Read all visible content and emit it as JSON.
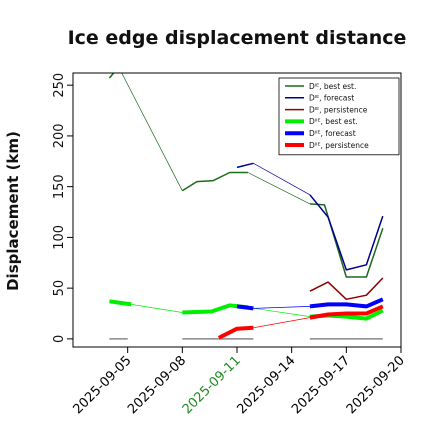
{
  "chart_data": {
    "type": "line",
    "title": "Ice edge displacement distance",
    "xlabel": "",
    "ylabel": "Displacement (km)",
    "ylim": [
      -8,
      262
    ],
    "yticks": [
      0,
      50,
      100,
      150,
      200,
      250
    ],
    "xlim": [
      "2025-09-02",
      "2025-09-20"
    ],
    "xticks": [
      {
        "label": "2025-09-05",
        "date": "2025-09-05",
        "color": "#000000"
      },
      {
        "label": "2025-09-08",
        "date": "2025-09-08",
        "color": "#000000"
      },
      {
        "label": "2025-09-11",
        "date": "2025-09-11",
        "color": "#1f8a1f"
      },
      {
        "label": "2025-09-14",
        "date": "2025-09-14",
        "color": "#000000"
      },
      {
        "label": "2025-09-17",
        "date": "2025-09-17",
        "color": "#000000"
      },
      {
        "label": "2025-09-20",
        "date": "2025-09-20",
        "color": "#000000"
      }
    ],
    "legend_position": "top-right",
    "legend": [
      {
        "label": "Dᴵᴱ, best est.",
        "color": "#1a6b1a",
        "width": 1.5
      },
      {
        "label": "Dᴵᴱ, forecast",
        "color": "#00008b",
        "width": 1.5
      },
      {
        "label": "Dᴵᴱ, persistence",
        "color": "#8b0000",
        "width": 1.5
      },
      {
        "label": "Dᴵᴵᴱ, best est.",
        "color": "#00ee00",
        "width": 4
      },
      {
        "label": "Dᴵᴵᴱ, forecast",
        "color": "#0000ff",
        "width": 4
      },
      {
        "label": "Dᴵᴵᴱ, persistence",
        "color": "#ff0000",
        "width": 4
      }
    ],
    "series": [
      {
        "name": "Dᴵᴱ, best est.",
        "color": "#1a6b1a",
        "width": 1.5,
        "segments": [
          [
            [
              "2025-09-04",
              257
            ],
            [
              "2025-09-04.5",
              268
            ]
          ],
          [
            [
              "2025-09-08",
              146
            ],
            [
              "2025-09-08.8",
              155
            ],
            [
              "2025-09-09.7",
              156
            ],
            [
              "2025-09-10.6",
              164
            ],
            [
              "2025-09-11.6",
              164
            ]
          ],
          [
            [
              "2025-09-15",
              133
            ],
            [
              "2025-09-15.8",
              132
            ],
            [
              "2025-09-17",
              61
            ],
            [
              "2025-09-18.1",
              61
            ],
            [
              "2025-09-19",
              109
            ]
          ]
        ]
      },
      {
        "name": "Dᴵᴱ, forecast",
        "color": "#00008b",
        "width": 1.5,
        "segments": [
          [
            [
              "2025-09-11",
              169
            ],
            [
              "2025-09-11.9",
              173
            ]
          ],
          [
            [
              "2025-09-15",
              142
            ],
            [
              "2025-09-16",
              120
            ],
            [
              "2025-09-17",
              68
            ],
            [
              "2025-09-18.1",
              73
            ],
            [
              "2025-09-19",
              121
            ]
          ]
        ]
      },
      {
        "name": "Dᴵᴱ, persistence",
        "color": "#8b0000",
        "width": 1.5,
        "segments": [
          [
            [
              "2025-09-15",
              47
            ],
            [
              "2025-09-16",
              56
            ],
            [
              "2025-09-17",
              39
            ],
            [
              "2025-09-18.1",
              43
            ],
            [
              "2025-09-19",
              60
            ]
          ]
        ]
      },
      {
        "name": "Dᴵᴵᴱ, best est.",
        "color": "#00ee00",
        "width": 4,
        "segments": [
          [
            [
              "2025-09-04",
              37
            ],
            [
              "2025-09-05.2",
              34
            ]
          ],
          [
            [
              "2025-09-08",
              26
            ],
            [
              "2025-09-09.6",
              27
            ],
            [
              "2025-09-10.6",
              33
            ],
            [
              "2025-09-11.6",
              31
            ]
          ],
          [
            [
              "2025-09-15",
              22
            ],
            [
              "2025-09-16",
              23
            ],
            [
              "2025-09-17",
              22
            ],
            [
              "2025-09-18.1",
              20
            ],
            [
              "2025-09-19",
              28
            ]
          ]
        ]
      },
      {
        "name": "Dᴵᴵᴱ, forecast",
        "color": "#0000ff",
        "width": 4,
        "segments": [
          [
            [
              "2025-09-11",
              32
            ],
            [
              "2025-09-11.9",
              30
            ]
          ],
          [
            [
              "2025-09-15",
              32
            ],
            [
              "2025-09-16",
              34
            ],
            [
              "2025-09-17",
              34
            ],
            [
              "2025-09-18.1",
              32
            ],
            [
              "2025-09-19",
              39
            ]
          ]
        ]
      },
      {
        "name": "Dᴵᴵᴱ, persistence",
        "color": "#ff0000",
        "width": 4,
        "segments": [
          [
            [
              "2025-09-10",
              1
            ],
            [
              "2025-09-11",
              10
            ],
            [
              "2025-09-11.9",
              11
            ]
          ],
          [
            [
              "2025-09-15",
              21
            ],
            [
              "2025-09-16",
              24
            ],
            [
              "2025-09-17",
              25
            ],
            [
              "2025-09-18.1",
              25
            ],
            [
              "2025-09-19",
              32
            ]
          ]
        ]
      }
    ],
    "connectors": [
      {
        "color": "#1a6b1a",
        "points": [
          [
            "2025-09-04.5",
            268
          ],
          [
            "2025-09-08",
            146
          ]
        ]
      },
      {
        "color": "#1a6b1a",
        "points": [
          [
            "2025-09-11.6",
            164
          ],
          [
            "2025-09-15",
            133
          ]
        ]
      },
      {
        "color": "#00008b",
        "points": [
          [
            "2025-09-11.9",
            173
          ],
          [
            "2025-09-15",
            142
          ]
        ]
      },
      {
        "color": "#00ee00",
        "points": [
          [
            "2025-09-05.2",
            34
          ],
          [
            "2025-09-08",
            26
          ]
        ]
      },
      {
        "color": "#00ee00",
        "points": [
          [
            "2025-09-11.6",
            31
          ],
          [
            "2025-09-15",
            22
          ]
        ]
      },
      {
        "color": "#0000ff",
        "points": [
          [
            "2025-09-11.9",
            30
          ],
          [
            "2025-09-15",
            32
          ]
        ]
      },
      {
        "color": "#ff0000",
        "points": [
          [
            "2025-09-11.9",
            11
          ],
          [
            "2025-09-15",
            21
          ]
        ]
      }
    ],
    "baseline_markers": [
      {
        "color": "#888888",
        "points": [
          [
            "2025-09-04",
            0
          ],
          [
            "2025-09-05",
            0
          ]
        ]
      },
      {
        "color": "#888888",
        "points": [
          [
            "2025-09-08",
            0
          ],
          [
            "2025-09-11.9",
            0
          ]
        ]
      },
      {
        "color": "#888888",
        "points": [
          [
            "2025-09-15",
            0
          ],
          [
            "2025-09-19",
            0
          ]
        ]
      }
    ]
  }
}
